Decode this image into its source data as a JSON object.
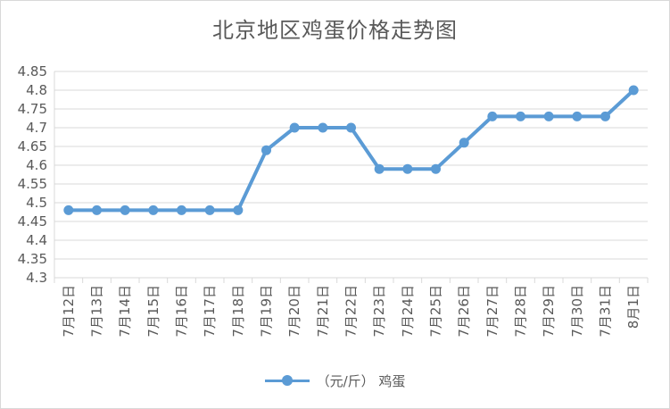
{
  "chart_data": {
    "type": "line",
    "title": "北京地区鸡蛋价格走势图",
    "categories": [
      "7月12日",
      "7月13日",
      "7月14日",
      "7月15日",
      "7月16日",
      "7月17日",
      "7月18日",
      "7月19日",
      "7月20日",
      "7月21日",
      "7月22日",
      "7月23日",
      "7月24日",
      "7月25日",
      "7月26日",
      "7月27日",
      "7月28日",
      "7月29日",
      "7月30日",
      "7月31日",
      "8月1日"
    ],
    "series": [
      {
        "name": "（元/斤） 鸡蛋",
        "values": [
          4.48,
          4.48,
          4.48,
          4.48,
          4.48,
          4.48,
          4.48,
          4.64,
          4.7,
          4.7,
          4.7,
          4.59,
          4.59,
          4.59,
          4.66,
          4.73,
          4.73,
          4.73,
          4.73,
          4.73,
          4.8
        ]
      }
    ],
    "ylim": [
      4.3,
      4.85
    ],
    "yticks": [
      "4.3",
      "4.35",
      "4.4",
      "4.45",
      "4.5",
      "4.55",
      "4.6",
      "4.65",
      "4.7",
      "4.75",
      "4.8",
      "4.85"
    ],
    "grid": true,
    "legend": "bottom",
    "color": "#5b9bd5"
  }
}
